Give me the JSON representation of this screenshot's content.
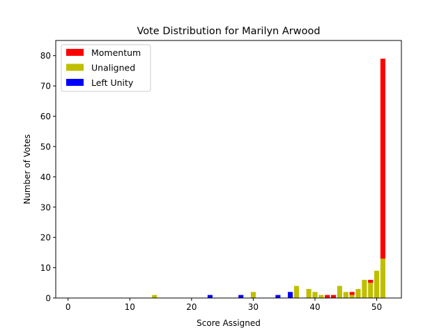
{
  "chart_data": {
    "type": "bar",
    "stacked": true,
    "title": "Vote Distribution for Marilyn Arwood",
    "xlabel": "Score Assigned",
    "ylabel": "Number of Votes",
    "xlim": [
      -2,
      54
    ],
    "ylim": [
      0,
      85
    ],
    "xticks": [
      0,
      10,
      20,
      30,
      40,
      50
    ],
    "yticks": [
      0,
      10,
      20,
      30,
      40,
      50,
      60,
      70,
      80
    ],
    "grid": false,
    "legend_position": "top-left",
    "x": [
      14,
      23,
      28,
      30,
      34,
      36,
      37,
      39,
      40,
      41,
      42,
      43,
      44,
      45,
      46,
      47,
      48,
      49,
      50,
      51
    ],
    "series": [
      {
        "name": "Unaligned",
        "color": "#bfbf00",
        "values": [
          1,
          0,
          0,
          2,
          0,
          0,
          4,
          3,
          2,
          1,
          0,
          0,
          4,
          2,
          1,
          3,
          6,
          5,
          9,
          13
        ]
      },
      {
        "name": "Momentum",
        "color": "#ff0000",
        "values": [
          0,
          0,
          0,
          0,
          0,
          0,
          0,
          0,
          0,
          0,
          1,
          1,
          0,
          0,
          1,
          0,
          0,
          1,
          0,
          66
        ]
      },
      {
        "name": "Left Unity",
        "color": "#0000ff",
        "values": [
          0,
          1,
          1,
          0,
          1,
          2,
          0,
          0,
          0,
          0,
          0,
          0,
          0,
          0,
          0,
          0,
          0,
          0,
          0,
          0
        ]
      }
    ],
    "legend": [
      {
        "name": "Momentum",
        "color": "#ff0000"
      },
      {
        "name": "Unaligned",
        "color": "#bfbf00"
      },
      {
        "name": "Left Unity",
        "color": "#0000ff"
      }
    ]
  }
}
